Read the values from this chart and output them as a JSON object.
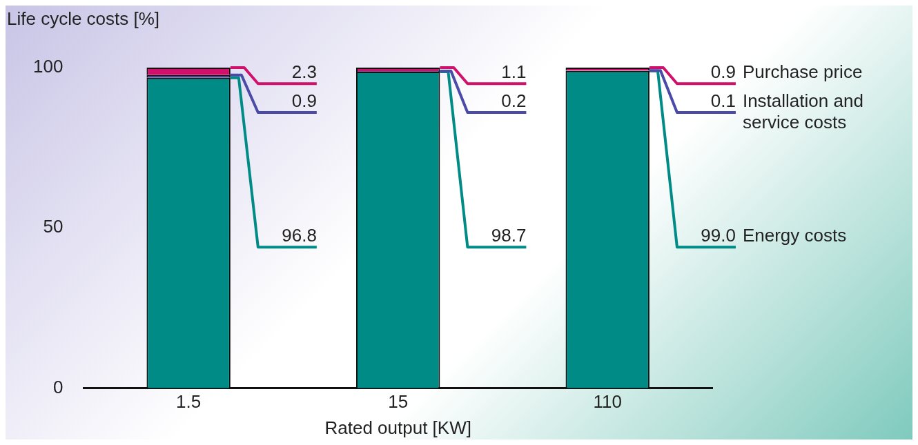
{
  "chart_data": {
    "type": "bar",
    "stacked": true,
    "ylabel": "Life cycle costs [%]",
    "xlabel": "Rated output [KW]",
    "categories": [
      "1.5",
      "15",
      "110"
    ],
    "ylim": [
      0,
      100
    ],
    "yticks": [
      0,
      50,
      100
    ],
    "grid": false,
    "data_labels": true,
    "series": [
      {
        "name": "Energy costs",
        "color": "#008b86",
        "values": [
          96.8,
          98.7,
          99.0
        ],
        "value_labels": [
          "96.8",
          "98.7",
          "99.0"
        ]
      },
      {
        "name": "Installation and service costs",
        "color": "#4a4aa8",
        "values": [
          0.9,
          0.2,
          0.1
        ],
        "value_labels": [
          "0.9",
          "0.2",
          "0.1"
        ]
      },
      {
        "name": "Purchase price",
        "color": "#d0106a",
        "values": [
          2.3,
          1.1,
          0.9
        ],
        "value_labels": [
          "2.3",
          "1.1",
          "0.9"
        ]
      }
    ]
  }
}
